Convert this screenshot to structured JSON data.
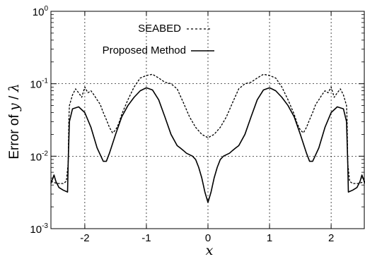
{
  "chart_data": {
    "type": "line",
    "title": "",
    "xlabel": "x",
    "ylabel_prefix": "Error of ",
    "ylabel_y": "y",
    "ylabel_sep": " / ",
    "ylabel_lambda": "λ",
    "xlim": [
      -2.55,
      2.55
    ],
    "ylim": [
      0.001,
      1
    ],
    "yscale": "log",
    "grid": "dotted at major ticks",
    "legend_placement": "top-center",
    "x_ticks": [
      {
        "value": -2,
        "label": "-2"
      },
      {
        "value": -1,
        "label": "-1"
      },
      {
        "value": 0,
        "label": "0"
      },
      {
        "value": 1,
        "label": "1"
      },
      {
        "value": 2,
        "label": "2"
      }
    ],
    "y_ticks": [
      {
        "value": 0.001,
        "base": "10",
        "exp": "-3"
      },
      {
        "value": 0.01,
        "base": "10",
        "exp": "-2"
      },
      {
        "value": 0.1,
        "base": "10",
        "exp": "-1"
      },
      {
        "value": 1,
        "base": "10",
        "exp": "0"
      }
    ],
    "series": [
      {
        "name": "SEABED",
        "style": "dashed",
        "color": "#000000",
        "x": [
          -2.55,
          -2.45,
          -2.35,
          -2.3,
          -2.27,
          -2.26,
          -2.25,
          -2.2,
          -2.15,
          -2.1,
          -2.05,
          -2.0,
          -1.95,
          -1.9,
          -1.85,
          -1.8,
          -1.75,
          -1.7,
          -1.65,
          -1.6,
          -1.55,
          -1.5,
          -1.45,
          -1.4,
          -1.3,
          -1.2,
          -1.1,
          -1.0,
          -0.9,
          -0.8,
          -0.7,
          -0.6,
          -0.5,
          -0.4,
          -0.3,
          -0.2,
          -0.1,
          0.0,
          0.1,
          0.2,
          0.3,
          0.4,
          0.5,
          0.6,
          0.7,
          0.8,
          0.9,
          1.0,
          1.1,
          1.2,
          1.3,
          1.4,
          1.45,
          1.5,
          1.55,
          1.6,
          1.65,
          1.7,
          1.75,
          1.8,
          1.85,
          1.9,
          1.95,
          2.0,
          2.05,
          2.1,
          2.15,
          2.2,
          2.25,
          2.26,
          2.27,
          2.3,
          2.35,
          2.45,
          2.55
        ],
        "y": [
          0.0045,
          0.0042,
          0.0042,
          0.0045,
          0.008,
          0.03,
          0.05,
          0.07,
          0.085,
          0.075,
          0.065,
          0.09,
          0.075,
          0.08,
          0.07,
          0.06,
          0.052,
          0.04,
          0.032,
          0.025,
          0.021,
          0.023,
          0.028,
          0.038,
          0.06,
          0.09,
          0.12,
          0.13,
          0.135,
          0.12,
          0.105,
          0.1,
          0.085,
          0.055,
          0.035,
          0.025,
          0.02,
          0.018,
          0.02,
          0.025,
          0.035,
          0.055,
          0.085,
          0.1,
          0.105,
          0.12,
          0.135,
          0.13,
          0.12,
          0.09,
          0.06,
          0.038,
          0.028,
          0.023,
          0.021,
          0.025,
          0.032,
          0.04,
          0.052,
          0.06,
          0.07,
          0.08,
          0.075,
          0.09,
          0.065,
          0.075,
          0.085,
          0.07,
          0.05,
          0.03,
          0.008,
          0.0045,
          0.0042,
          0.0042,
          0.0045
        ]
      },
      {
        "name": "Proposed Method",
        "style": "solid",
        "color": "#000000",
        "x": [
          -2.55,
          -2.5,
          -2.47,
          -2.42,
          -2.35,
          -2.28,
          -2.27,
          -2.25,
          -2.2,
          -2.1,
          -2.0,
          -1.9,
          -1.8,
          -1.7,
          -1.65,
          -1.6,
          -1.5,
          -1.4,
          -1.3,
          -1.2,
          -1.1,
          -1.0,
          -0.9,
          -0.8,
          -0.7,
          -0.6,
          -0.5,
          -0.45,
          -0.4,
          -0.35,
          -0.3,
          -0.25,
          -0.2,
          -0.15,
          -0.1,
          -0.05,
          0.0,
          0.05,
          0.1,
          0.15,
          0.2,
          0.25,
          0.3,
          0.35,
          0.4,
          0.45,
          0.5,
          0.6,
          0.7,
          0.8,
          0.9,
          1.0,
          1.1,
          1.2,
          1.3,
          1.4,
          1.5,
          1.6,
          1.65,
          1.7,
          1.8,
          1.9,
          2.0,
          2.1,
          2.2,
          2.25,
          2.27,
          2.28,
          2.35,
          2.42,
          2.47,
          2.5,
          2.55
        ],
        "y": [
          0.0042,
          0.0055,
          0.0045,
          0.0037,
          0.0034,
          0.0032,
          0.008,
          0.03,
          0.045,
          0.048,
          0.04,
          0.025,
          0.013,
          0.0085,
          0.0085,
          0.011,
          0.02,
          0.035,
          0.05,
          0.065,
          0.08,
          0.088,
          0.082,
          0.06,
          0.035,
          0.02,
          0.014,
          0.013,
          0.012,
          0.011,
          0.0105,
          0.01,
          0.009,
          0.007,
          0.005,
          0.0032,
          0.0023,
          0.0032,
          0.005,
          0.007,
          0.009,
          0.01,
          0.0105,
          0.011,
          0.012,
          0.013,
          0.014,
          0.02,
          0.035,
          0.06,
          0.082,
          0.088,
          0.08,
          0.065,
          0.05,
          0.035,
          0.02,
          0.011,
          0.0085,
          0.0085,
          0.013,
          0.025,
          0.04,
          0.048,
          0.045,
          0.03,
          0.008,
          0.0032,
          0.0034,
          0.0037,
          0.0045,
          0.0055,
          0.0042
        ]
      }
    ]
  }
}
